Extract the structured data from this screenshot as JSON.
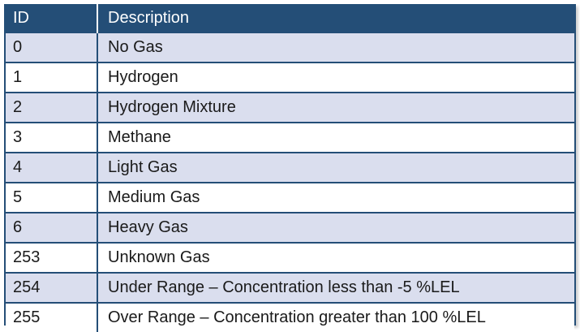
{
  "table": {
    "headers": {
      "id": "ID",
      "description": "Description"
    },
    "rows": [
      {
        "id": "0",
        "description": "No Gas"
      },
      {
        "id": "1",
        "description": "Hydrogen"
      },
      {
        "id": "2",
        "description": "Hydrogen Mixture"
      },
      {
        "id": "3",
        "description": "Methane"
      },
      {
        "id": "4",
        "description": "Light Gas"
      },
      {
        "id": "5",
        "description": "Medium Gas"
      },
      {
        "id": "6",
        "description": "Heavy Gas"
      },
      {
        "id": "253",
        "description": "Unknown Gas"
      },
      {
        "id": "254",
        "description": "Under Range – Concentration less than -5 %LEL"
      },
      {
        "id": "255",
        "description": "Over Range – Concentration greater than 100 %LEL"
      }
    ]
  },
  "colors": {
    "header_bg": "#244e77",
    "header_text": "#ffffff",
    "stripe_row": "#dadeee",
    "plain_row": "#ffffff",
    "border": "#244e77"
  }
}
